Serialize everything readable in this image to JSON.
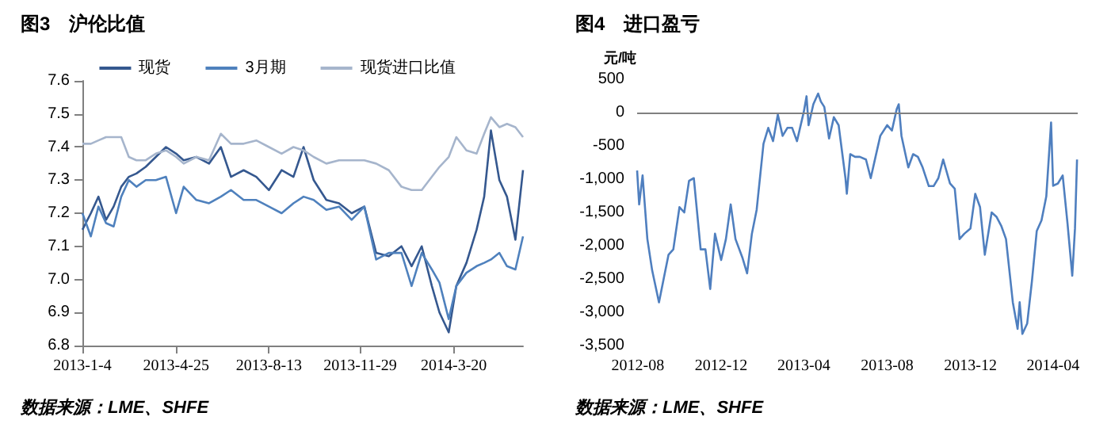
{
  "chart_data": [
    {
      "type": "line",
      "title": "图3　沪伦比值",
      "annotations": [
        "数据来源：LME、SHFE"
      ],
      "legend": "top",
      "grid": false,
      "marker": "none",
      "line_style": "solid",
      "x": [
        "2013-01-04",
        "2013-01-14",
        "2013-01-23",
        "2013-02-01",
        "2013-02-10",
        "2013-02-19",
        "2013-02-28",
        "2013-03-09",
        "2013-03-20",
        "2013-04-01",
        "2013-04-13",
        "2013-04-25",
        "2013-05-04",
        "2013-05-19",
        "2013-06-03",
        "2013-06-17",
        "2013-06-29",
        "2013-07-14",
        "2013-07-29",
        "2013-08-13",
        "2013-08-28",
        "2013-09-11",
        "2013-09-23",
        "2013-10-05",
        "2013-10-20",
        "2013-11-04",
        "2013-11-19",
        "2013-12-04",
        "2013-12-18",
        "2014-01-02",
        "2014-01-17",
        "2014-01-29",
        "2014-02-10",
        "2014-02-22",
        "2014-03-03",
        "2014-03-14",
        "2014-03-23",
        "2014-04-04",
        "2014-04-16",
        "2014-04-25",
        "2014-05-03",
        "2014-05-13",
        "2014-05-22",
        "2014-06-01",
        "2014-06-10"
      ],
      "series": [
        {
          "name": "现货",
          "color": "#35588f",
          "values": [
            7.15,
            7.2,
            7.25,
            7.18,
            7.22,
            7.28,
            7.31,
            7.32,
            7.34,
            7.37,
            7.4,
            7.38,
            7.36,
            7.37,
            7.35,
            7.4,
            7.31,
            7.33,
            7.31,
            7.27,
            7.33,
            7.31,
            7.4,
            7.3,
            7.24,
            7.23,
            7.2,
            7.22,
            7.08,
            7.07,
            7.1,
            7.04,
            7.1,
            6.98,
            6.9,
            6.84,
            6.98,
            7.05,
            7.15,
            7.25,
            7.45,
            7.3,
            7.25,
            7.12,
            7.33
          ]
        },
        {
          "name": "3月期",
          "color": "#4f81bd",
          "values": [
            7.2,
            7.13,
            7.22,
            7.17,
            7.16,
            7.25,
            7.3,
            7.28,
            7.3,
            7.3,
            7.31,
            7.2,
            7.28,
            7.24,
            7.23,
            7.25,
            7.27,
            7.24,
            7.24,
            7.22,
            7.2,
            7.23,
            7.25,
            7.24,
            7.21,
            7.22,
            7.18,
            7.22,
            7.06,
            7.08,
            7.08,
            6.98,
            7.08,
            7.03,
            6.99,
            6.88,
            6.98,
            7.02,
            7.04,
            7.05,
            7.06,
            7.08,
            7.04,
            7.03,
            7.13
          ]
        },
        {
          "name": "现货进口比值",
          "color": "#a6b5cc",
          "values": [
            7.41,
            7.41,
            7.42,
            7.43,
            7.43,
            7.43,
            7.37,
            7.36,
            7.36,
            7.38,
            7.39,
            7.37,
            7.35,
            7.37,
            7.36,
            7.44,
            7.41,
            7.41,
            7.42,
            7.4,
            7.38,
            7.4,
            7.39,
            7.37,
            7.35,
            7.36,
            7.36,
            7.36,
            7.35,
            7.33,
            7.28,
            7.27,
            7.27,
            7.31,
            7.34,
            7.37,
            7.43,
            7.39,
            7.38,
            7.44,
            7.49,
            7.46,
            7.47,
            7.46,
            7.43
          ]
        }
      ],
      "xlim": [
        "2013-01-04",
        "2014-06-10"
      ],
      "xticks": [
        {
          "value": "2013-01-04",
          "label": "2013-1-4"
        },
        {
          "value": "2013-04-25",
          "label": "2013-4-25"
        },
        {
          "value": "2013-08-13",
          "label": "2013-8-13"
        },
        {
          "value": "2013-11-29",
          "label": "2013-11-29"
        },
        {
          "value": "2014-03-20",
          "label": "2014-3-20"
        }
      ],
      "ylim": [
        6.8,
        7.6
      ],
      "yticks": [
        {
          "value": 6.8,
          "label": "6.8"
        },
        {
          "value": 6.9,
          "label": "6.9"
        },
        {
          "value": 7,
          "label": "7.0"
        },
        {
          "value": 7.1,
          "label": "7.1"
        },
        {
          "value": 7.2,
          "label": "7.2"
        },
        {
          "value": 7.3,
          "label": "7.3"
        },
        {
          "value": 7.4,
          "label": "7.4"
        },
        {
          "value": 7.5,
          "label": "7.5"
        },
        {
          "value": 7.6,
          "label": "7.6"
        }
      ]
    },
    {
      "type": "line",
      "title": "图4　进口盈亏",
      "ylabel": "元/吨",
      "annotations": [
        "数据来源：LME、SHFE"
      ],
      "legend": false,
      "grid": false,
      "marker": "none",
      "line_style": "solid",
      "x": [
        "2012-07-31",
        "2012-08-03",
        "2012-08-08",
        "2012-08-15",
        "2012-08-22",
        "2012-09-01",
        "2012-09-08",
        "2012-09-15",
        "2012-09-22",
        "2012-10-01",
        "2012-10-08",
        "2012-10-15",
        "2012-10-22",
        "2012-11-01",
        "2012-11-08",
        "2012-11-15",
        "2012-11-22",
        "2012-12-01",
        "2012-12-08",
        "2012-12-15",
        "2012-12-22",
        "2013-01-01",
        "2013-01-08",
        "2013-01-15",
        "2013-01-22",
        "2013-02-01",
        "2013-02-08",
        "2013-02-15",
        "2013-02-22",
        "2013-03-01",
        "2013-03-08",
        "2013-03-15",
        "2013-03-22",
        "2013-04-01",
        "2013-04-05",
        "2013-04-08",
        "2013-04-15",
        "2013-04-22",
        "2013-04-26",
        "2013-05-01",
        "2013-05-08",
        "2013-05-15",
        "2013-05-22",
        "2013-06-01",
        "2013-06-03",
        "2013-06-08",
        "2013-06-15",
        "2013-06-22",
        "2013-07-01",
        "2013-07-08",
        "2013-07-15",
        "2013-07-22",
        "2013-08-01",
        "2013-08-08",
        "2013-08-15",
        "2013-08-18",
        "2013-08-22",
        "2013-09-01",
        "2013-09-08",
        "2013-09-15",
        "2013-09-22",
        "2013-10-01",
        "2013-10-08",
        "2013-10-15",
        "2013-10-22",
        "2013-11-01",
        "2013-11-08",
        "2013-11-15",
        "2013-11-22",
        "2013-12-01",
        "2013-12-08",
        "2013-12-15",
        "2013-12-22",
        "2014-01-01",
        "2014-01-08",
        "2014-01-15",
        "2014-01-22",
        "2014-02-01",
        "2014-02-08",
        "2014-02-11",
        "2014-02-15",
        "2014-02-22",
        "2014-03-01",
        "2014-03-08",
        "2014-03-15",
        "2014-03-22",
        "2014-03-29",
        "2014-04-01",
        "2014-04-08",
        "2014-04-15",
        "2014-04-22",
        "2014-04-29",
        "2014-05-01",
        "2014-05-03",
        "2014-05-06"
      ],
      "series": [
        {
          "color": "#4f7fbf",
          "values": [
            -870,
            -1380,
            -945,
            -1900,
            -2370,
            -2850,
            -2490,
            -2135,
            -2055,
            -1420,
            -1500,
            -1025,
            -985,
            -2055,
            -2055,
            -2650,
            -1820,
            -2215,
            -1900,
            -1380,
            -1900,
            -2175,
            -2415,
            -1820,
            -1460,
            -470,
            -230,
            -430,
            -30,
            -350,
            -230,
            -230,
            -430,
            10,
            245,
            -190,
            125,
            285,
            165,
            85,
            -390,
            -70,
            -190,
            -985,
            -1220,
            -625,
            -665,
            -665,
            -705,
            -985,
            -665,
            -350,
            -190,
            -270,
            50,
            125,
            -350,
            -825,
            -625,
            -665,
            -825,
            -1105,
            -1105,
            -985,
            -705,
            -1065,
            -1145,
            -1900,
            -1820,
            -1740,
            -1220,
            -1420,
            -2135,
            -1500,
            -1565,
            -1700,
            -1900,
            -2850,
            -3250,
            -2850,
            -3325,
            -3170,
            -2530,
            -1780,
            -1620,
            -1260,
            -150,
            -1100,
            -1065,
            -945,
            -1660,
            -2450,
            -2100,
            -1740,
            -705
          ]
        }
      ],
      "ref_lines": [
        {
          "axis": "y",
          "value": 0,
          "color": "#808080"
        }
      ],
      "xlim": [
        "2012-07-31",
        "2014-05-07"
      ],
      "xticks": [
        "2012-08",
        "2012-12",
        "2013-04",
        "2013-08",
        "2013-12",
        "2014-04"
      ],
      "ylim": [
        -3500,
        500
      ],
      "yticks": [
        {
          "value": -3500,
          "label": "-3,500"
        },
        {
          "value": -3000,
          "label": "-3,000"
        },
        {
          "value": -2500,
          "label": "-2,500"
        },
        {
          "value": -2000,
          "label": "-2,000"
        },
        {
          "value": -1500,
          "label": "-1,500"
        },
        {
          "value": -1000,
          "label": "-1,000"
        },
        {
          "value": -500,
          "label": "-500"
        },
        {
          "value": 0,
          "label": "0"
        },
        {
          "value": 500,
          "label": "500"
        }
      ]
    }
  ]
}
